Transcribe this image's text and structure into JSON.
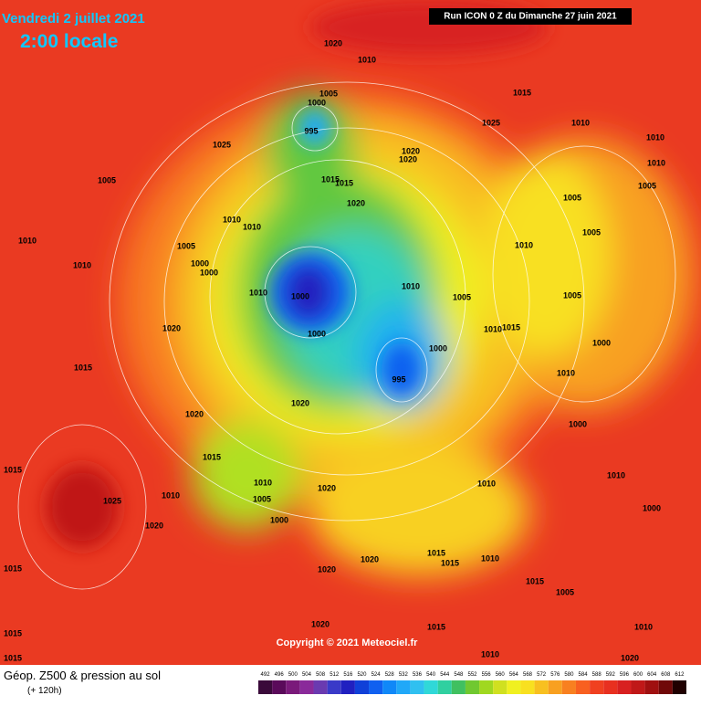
{
  "header": {
    "date": "Vendredi 2 juillet 2021",
    "time": "2:00 locale",
    "run": "Run ICON 0 Z du Dimanche 27 juin 2021"
  },
  "footer": {
    "title": "Géop. Z500 & pression au sol",
    "subtitle": "(+ 120h)",
    "copyright": "Copyright © 2021 Meteociel.fr"
  },
  "legend": {
    "levels": [
      492,
      496,
      500,
      504,
      508,
      512,
      516,
      520,
      524,
      528,
      532,
      536,
      540,
      544,
      548,
      552,
      556,
      560,
      564,
      568,
      572,
      576,
      580,
      584,
      588,
      592,
      596,
      600,
      604,
      608,
      612
    ],
    "colors": [
      "#3a0a3a",
      "#5a0a5a",
      "#7a1a7a",
      "#8a2a9a",
      "#6a3ab0",
      "#3a3ac8",
      "#2020c0",
      "#1040d8",
      "#1060f0",
      "#1088f8",
      "#20a8f8",
      "#30c0f0",
      "#30d8d8",
      "#30d0a0",
      "#40c060",
      "#70c830",
      "#a0d820",
      "#d0e020",
      "#f0f020",
      "#f8e020",
      "#f8c020",
      "#f8a020",
      "#f88020",
      "#f86020",
      "#f04020",
      "#e83020",
      "#d82020",
      "#c01818",
      "#a01010",
      "#700808",
      "#200000"
    ]
  },
  "isobar_labels": [
    1020,
    1010,
    1015,
    1005,
    1000,
    995,
    1025,
    1010,
    1010,
    1025,
    1020,
    1020,
    1010,
    1005,
    1015,
    1015,
    1020,
    1005,
    1005,
    1010,
    1010,
    1010,
    1005,
    1010,
    1005,
    1010,
    1000,
    1000,
    1010,
    1000,
    1005,
    1005,
    1010,
    1020,
    1000,
    1015,
    1010,
    1000,
    1000,
    1015,
    995,
    1010,
    1020,
    1020,
    1000,
    1015,
    1010,
    1005,
    1020,
    1010,
    1025,
    1010,
    1000,
    1020,
    1010,
    1000,
    1015,
    1015,
    1020,
    1020,
    1015,
    1010,
    1015,
    1015,
    1005,
    1020,
    1015,
    1015,
    1010,
    1020,
    1010,
    1015
  ]
}
